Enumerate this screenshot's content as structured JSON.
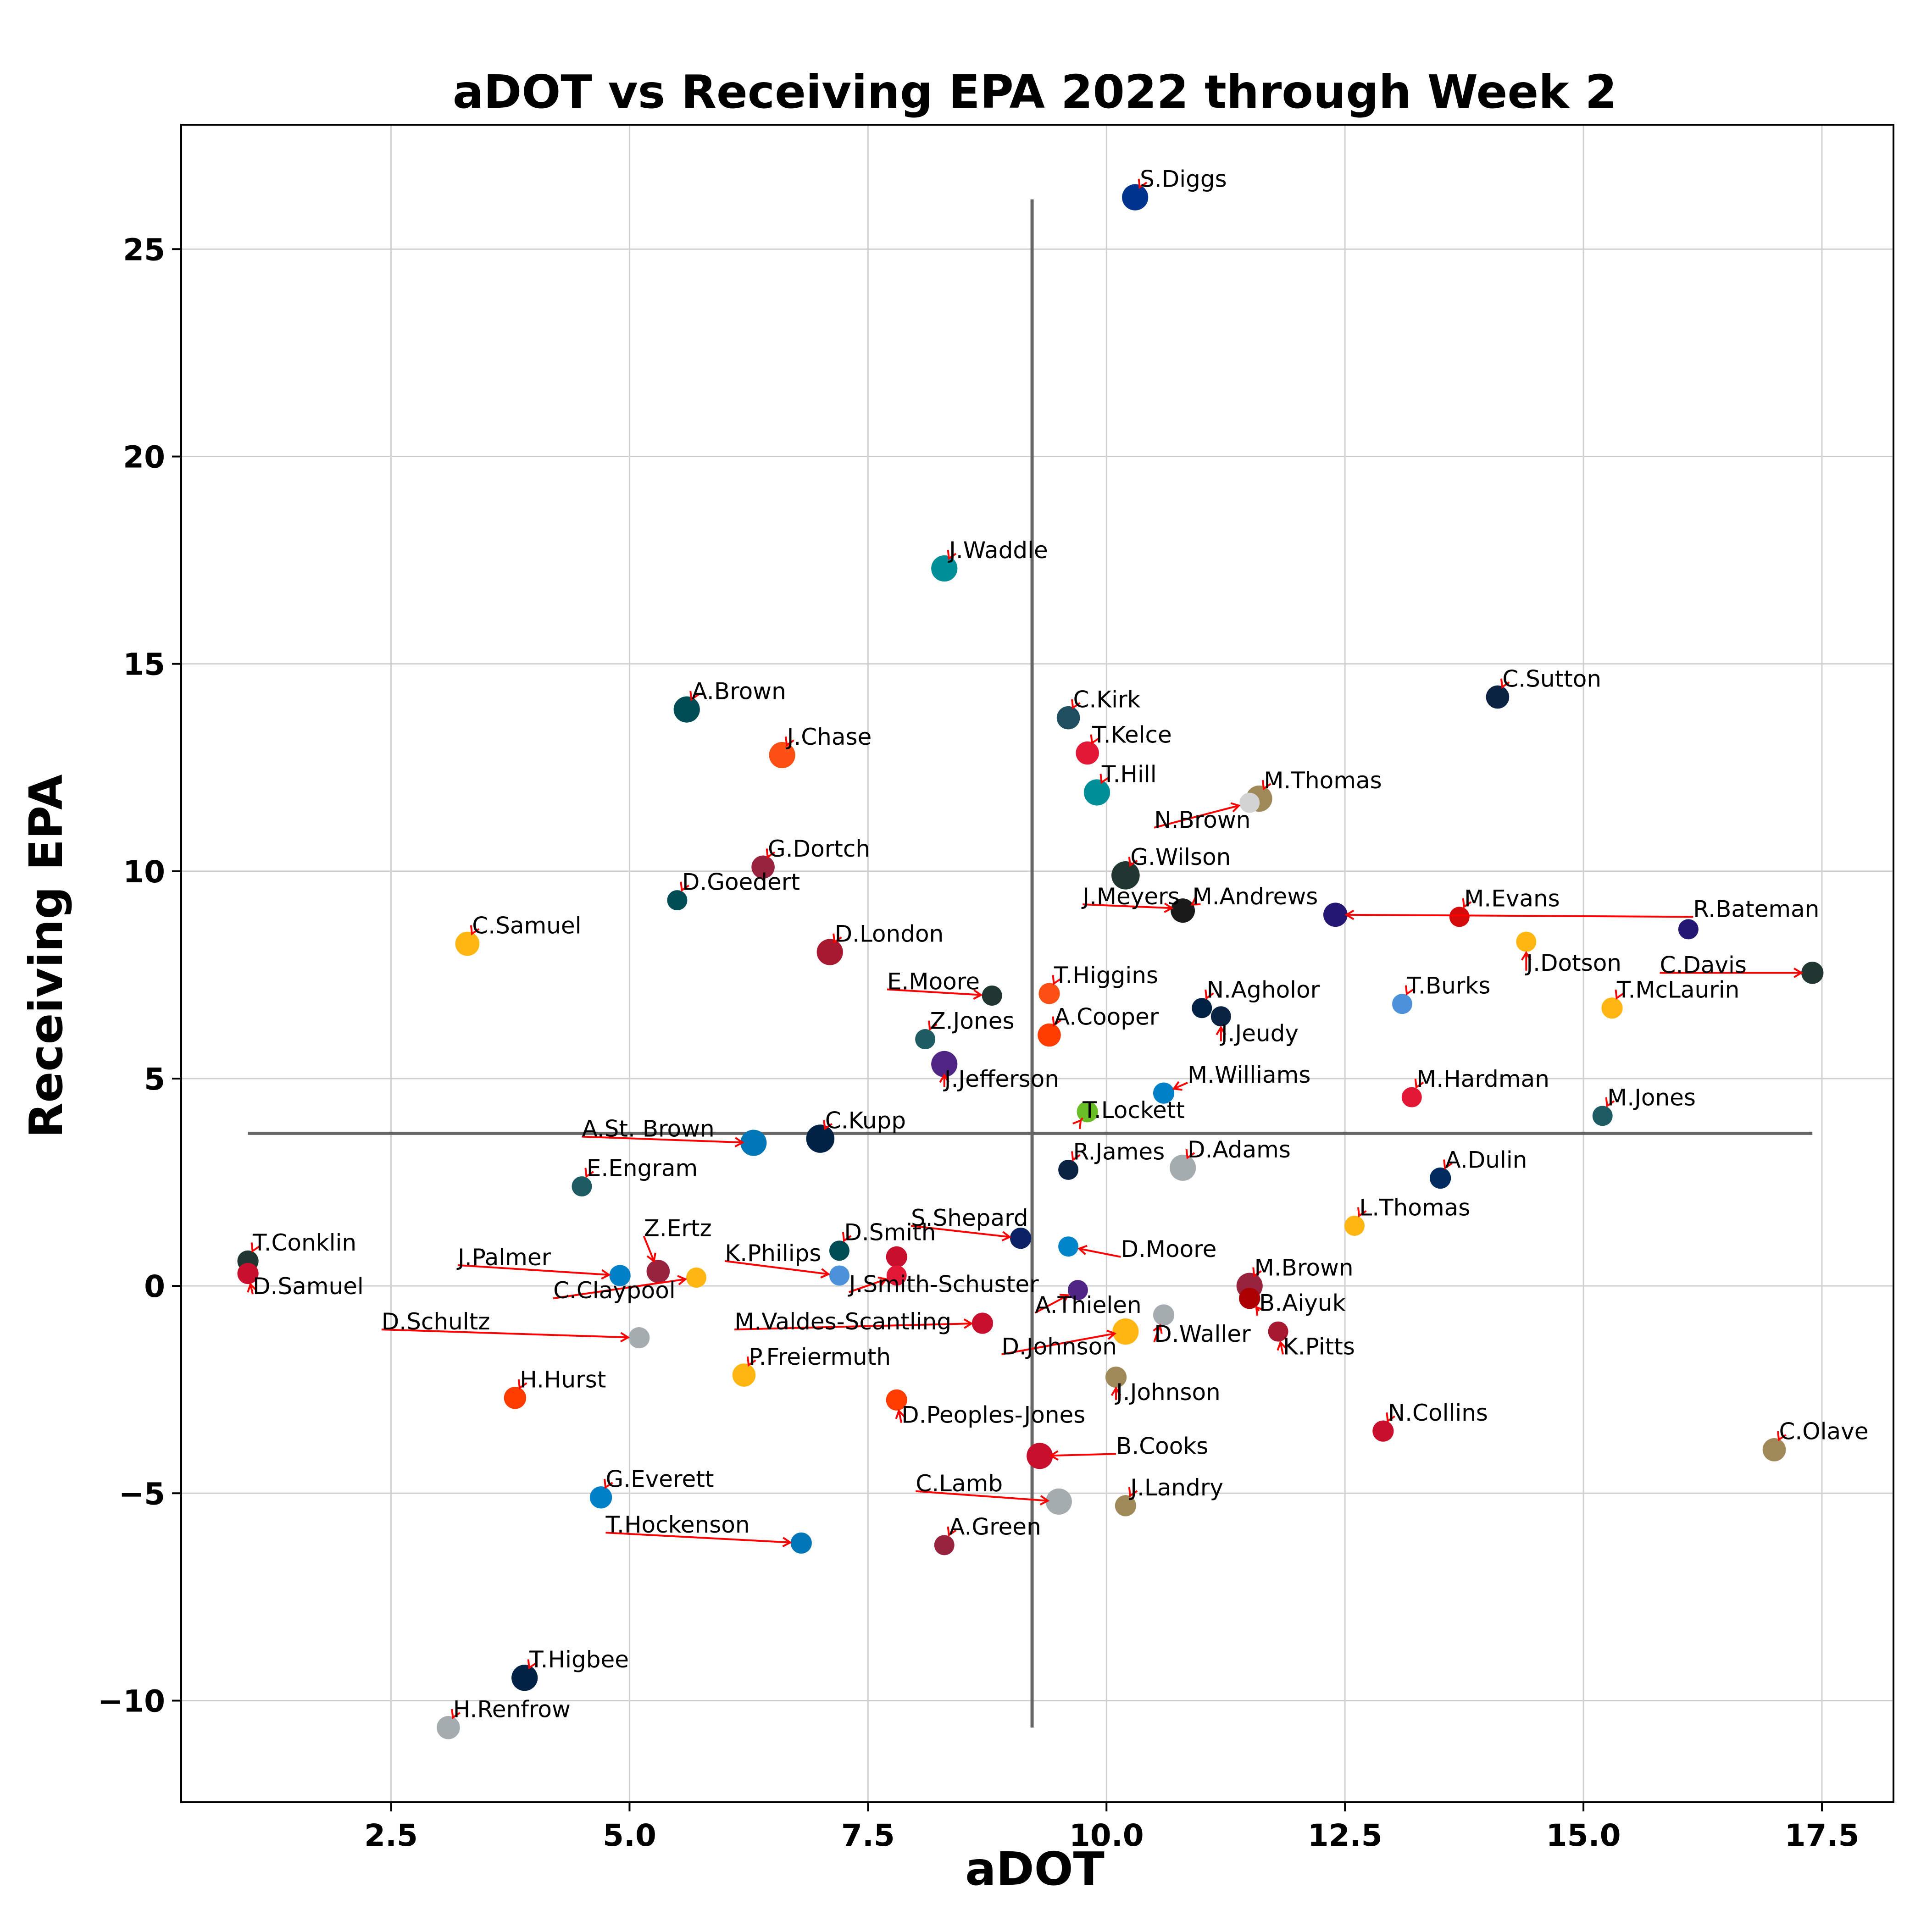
{
  "chart_data": {
    "type": "scatter",
    "title": "aDOT vs Receiving EPA 2022 through Week 2",
    "xlabel": "aDOT",
    "ylabel": "Receiving EPA",
    "xlim": [
      0.3,
      18.25
    ],
    "ylim": [
      -12.45,
      28.0
    ],
    "xticks": [
      2.5,
      5.0,
      7.5,
      10.0,
      12.5,
      15.0,
      17.5
    ],
    "xtick_labels": [
      "2.5",
      "5.0",
      "7.5",
      "10.0",
      "12.5",
      "15.0",
      "17.5"
    ],
    "yticks": [
      -10,
      -5,
      0,
      5,
      10,
      15,
      20,
      25
    ],
    "ytick_labels": [
      "−10",
      "−5",
      "0",
      "5",
      "10",
      "15",
      "20",
      "25"
    ],
    "grid": true,
    "reference_lines": {
      "vertical": {
        "x": 9.22,
        "y_from": -10.65,
        "y_to": 26.2
      },
      "horizontal": {
        "y": 3.68,
        "x_from": 1.0,
        "x_to": 17.4
      }
    },
    "points": [
      {
        "name": "S.Diggs",
        "x": 10.3,
        "y": 26.25,
        "color": "#00338D",
        "size": 1.3,
        "lx": 10.35,
        "ly": 26.5,
        "ldx": 0,
        "ldy": 0
      },
      {
        "name": "J.Waddle",
        "x": 8.3,
        "y": 17.3,
        "color": "#008E97",
        "size": 1.3,
        "lx": 8.35,
        "ly": 17.55,
        "ldx": 0,
        "ldy": 0
      },
      {
        "name": "C.Sutton",
        "x": 14.1,
        "y": 14.2,
        "color": "#0A2343",
        "size": 1.15,
        "lx": 14.15,
        "ly": 14.45,
        "ldx": 0,
        "ldy": 0
      },
      {
        "name": "A.Brown",
        "x": 5.6,
        "y": 13.9,
        "color": "#004C54",
        "size": 1.3,
        "lx": 5.65,
        "ly": 14.15,
        "ldx": 0,
        "ldy": 0
      },
      {
        "name": "C.Kirk",
        "x": 9.6,
        "y": 13.7,
        "color": "#1F4E5F",
        "size": 1.15,
        "lx": 9.65,
        "ly": 13.95,
        "ldx": 0,
        "ldy": 0
      },
      {
        "name": "J.Chase",
        "x": 6.6,
        "y": 12.8,
        "color": "#FB4F14",
        "size": 1.3,
        "lx": 6.65,
        "ly": 13.05,
        "ldx": 0,
        "ldy": 0
      },
      {
        "name": "T.Kelce",
        "x": 9.8,
        "y": 12.85,
        "color": "#E31837",
        "size": 1.15,
        "lx": 9.85,
        "ly": 13.1,
        "ldx": 0,
        "ldy": 0
      },
      {
        "name": "T.Hill",
        "x": 9.9,
        "y": 11.9,
        "color": "#008E97",
        "size": 1.3,
        "lx": 9.95,
        "ly": 12.15,
        "ldx": 0,
        "ldy": 0
      },
      {
        "name": "M.Thomas",
        "x": 11.6,
        "y": 11.75,
        "color": "#9F8958",
        "size": 1.3,
        "lx": 11.65,
        "ly": 12.0,
        "ldx": 0,
        "ldy": 0
      },
      {
        "name": "N.Brown",
        "x": 11.5,
        "y": 11.65,
        "color": "#D3D3D3",
        "size": 1.0,
        "lx": 10.5,
        "ly": 11.05,
        "ldx": 0,
        "ldy": 0
      },
      {
        "name": "G.Dortch",
        "x": 6.4,
        "y": 10.1,
        "color": "#97233F",
        "size": 1.15,
        "lx": 6.45,
        "ly": 10.35,
        "ldx": 0,
        "ldy": 0
      },
      {
        "name": "G.Wilson",
        "x": 10.2,
        "y": 9.9,
        "color": "#203731",
        "size": 1.4,
        "lx": 10.25,
        "ly": 10.15,
        "ldx": 0,
        "ldy": 0
      },
      {
        "name": "D.Goedert",
        "x": 5.5,
        "y": 9.3,
        "color": "#004C54",
        "size": 1.0,
        "lx": 5.55,
        "ly": 9.55,
        "ldx": 0,
        "ldy": 0
      },
      {
        "name": "J.Meyers",
        "x": 10.8,
        "y": 9.1,
        "color": "#002244",
        "size": 1.0,
        "lx": 9.75,
        "ly": 9.2,
        "ldx": 0,
        "ldy": 0
      },
      {
        "name": "M.Andrews",
        "x": 10.8,
        "y": 9.05,
        "color": "#1A1A1A",
        "size": 1.2,
        "lx": 10.9,
        "ly": 9.2,
        "ldx": 0,
        "ldy": 0
      },
      {
        "name": "R.Bateman",
        "x": 12.4,
        "y": 8.95,
        "color": "#241773",
        "size": 1.2,
        "lx": 16.15,
        "ly": 8.9,
        "ldx": 0,
        "ldy": 0
      },
      {
        "name": "M.Evans",
        "x": 13.7,
        "y": 8.9,
        "color": "#D50A0A",
        "size": 1.0,
        "lx": 13.75,
        "ly": 9.15,
        "ldx": 0,
        "ldy": 0
      },
      {
        "name": "R.Bateman_pt",
        "x": 16.1,
        "y": 8.6,
        "color": "#241773",
        "size": 1.0,
        "lx": null,
        "ly": null,
        "ldx": 0,
        "ldy": 0
      },
      {
        "name": "J.Dotson",
        "x": 14.4,
        "y": 8.3,
        "color": "#FFB612",
        "size": 1.0,
        "lx": 14.4,
        "ly": 7.6,
        "ldx": 0,
        "ldy": 0
      },
      {
        "name": "C.Samuel",
        "x": 3.3,
        "y": 8.25,
        "color": "#FFB612",
        "size": 1.2,
        "lx": 3.35,
        "ly": 8.5,
        "ldx": 0,
        "ldy": 0
      },
      {
        "name": "D.London",
        "x": 7.1,
        "y": 8.05,
        "color": "#A71930",
        "size": 1.3,
        "lx": 7.15,
        "ly": 8.3,
        "ldx": 0,
        "ldy": 0
      },
      {
        "name": "C.Davis",
        "x": 17.4,
        "y": 7.55,
        "color": "#203731",
        "size": 1.1,
        "lx": 15.8,
        "ly": 7.55,
        "ldx": 0,
        "ldy": 0
      },
      {
        "name": "T.Higgins",
        "x": 9.4,
        "y": 7.05,
        "color": "#FB4F14",
        "size": 1.05,
        "lx": 9.45,
        "ly": 7.3,
        "ldx": 0,
        "ldy": 0
      },
      {
        "name": "E.Moore",
        "x": 8.8,
        "y": 7.0,
        "color": "#203731",
        "size": 1.0,
        "lx": 7.7,
        "ly": 7.15,
        "ldx": 0,
        "ldy": 0
      },
      {
        "name": "N.Agholor",
        "x": 11.0,
        "y": 6.7,
        "color": "#002244",
        "size": 1.0,
        "lx": 11.05,
        "ly": 6.95,
        "ldx": 0,
        "ldy": 0
      },
      {
        "name": "T.Burks",
        "x": 13.1,
        "y": 6.8,
        "color": "#4B92DB",
        "size": 1.0,
        "lx": 13.15,
        "ly": 7.05,
        "ldx": 0,
        "ldy": 0
      },
      {
        "name": "T.McLaurin",
        "x": 15.3,
        "y": 6.7,
        "color": "#FFB612",
        "size": 1.05,
        "lx": 15.35,
        "ly": 6.95,
        "ldx": 0,
        "ldy": 0
      },
      {
        "name": "J.Jeudy",
        "x": 11.2,
        "y": 6.5,
        "color": "#0A2343",
        "size": 1.0,
        "lx": 11.2,
        "ly": 5.9,
        "ldx": 0,
        "ldy": 0
      },
      {
        "name": "A.Cooper",
        "x": 9.4,
        "y": 6.05,
        "color": "#FF3C00",
        "size": 1.15,
        "lx": 9.45,
        "ly": 6.3,
        "ldx": 0,
        "ldy": 0
      },
      {
        "name": "Z.Jones",
        "x": 8.1,
        "y": 5.95,
        "color": "#1D5C63",
        "size": 1.0,
        "lx": 8.15,
        "ly": 6.2,
        "ldx": 0,
        "ldy": 0
      },
      {
        "name": "J.Jefferson",
        "x": 8.3,
        "y": 5.35,
        "color": "#4F2683",
        "size": 1.3,
        "lx": 8.3,
        "ly": 4.8,
        "ldx": 0,
        "ldy": 0
      },
      {
        "name": "M.Williams",
        "x": 10.6,
        "y": 4.65,
        "color": "#0080C6",
        "size": 1.05,
        "lx": 10.85,
        "ly": 4.9,
        "ldx": 0,
        "ldy": 0
      },
      {
        "name": "M.Hardman",
        "x": 13.2,
        "y": 4.55,
        "color": "#E31837",
        "size": 1.0,
        "lx": 13.25,
        "ly": 4.8,
        "ldx": 0,
        "ldy": 0
      },
      {
        "name": "T.Lockett",
        "x": 9.8,
        "y": 4.2,
        "color": "#69BE28",
        "size": 1.05,
        "lx": 9.75,
        "ly": 4.05,
        "ldx": 0,
        "ldy": 0
      },
      {
        "name": "M.Jones",
        "x": 15.2,
        "y": 4.1,
        "color": "#1D5C63",
        "size": 1.0,
        "lx": 15.25,
        "ly": 4.35,
        "ldx": 0,
        "ldy": 0
      },
      {
        "name": "C.Kupp",
        "x": 7.0,
        "y": 3.55,
        "color": "#002244",
        "size": 1.4,
        "lx": 7.05,
        "ly": 3.8,
        "ldx": 0,
        "ldy": 0
      },
      {
        "name": "A.St. Brown",
        "x": 6.3,
        "y": 3.45,
        "color": "#0076B6",
        "size": 1.3,
        "lx": 4.5,
        "ly": 3.6,
        "ldx": 0,
        "ldy": 0
      },
      {
        "name": "D.Adams",
        "x": 10.8,
        "y": 2.85,
        "color": "#A5ACAF",
        "size": 1.3,
        "lx": 10.85,
        "ly": 3.1,
        "ldx": 0,
        "ldy": 0
      },
      {
        "name": "R.James",
        "x": 9.6,
        "y": 2.8,
        "color": "#0A2343",
        "size": 1.0,
        "lx": 9.65,
        "ly": 3.05,
        "ldx": 0,
        "ldy": 0
      },
      {
        "name": "A.Dulin",
        "x": 13.5,
        "y": 2.6,
        "color": "#002C5F",
        "size": 1.05,
        "lx": 13.55,
        "ly": 2.85,
        "ldx": 0,
        "ldy": 0
      },
      {
        "name": "E.Engram",
        "x": 4.5,
        "y": 2.4,
        "color": "#1D5C63",
        "size": 1.0,
        "lx": 4.55,
        "ly": 2.65,
        "ldx": 0,
        "ldy": 0
      },
      {
        "name": "L.Thomas",
        "x": 12.6,
        "y": 1.45,
        "color": "#FFB612",
        "size": 1.0,
        "lx": 12.65,
        "ly": 1.7,
        "ldx": 0,
        "ldy": 0
      },
      {
        "name": "S.Shepard",
        "x": 9.1,
        "y": 1.15,
        "color": "#0B2265",
        "size": 1.05,
        "lx": 7.95,
        "ly": 1.45,
        "ldx": 0,
        "ldy": 0
      },
      {
        "name": "D.Moore",
        "x": 9.6,
        "y": 0.95,
        "color": "#0085CA",
        "size": 1.0,
        "lx": 10.15,
        "ly": 0.7,
        "ldx": 0,
        "ldy": 0
      },
      {
        "name": "D.Smith",
        "x": 7.2,
        "y": 0.85,
        "color": "#004C54",
        "size": 1.0,
        "lx": 7.25,
        "ly": 1.1,
        "ldx": 0,
        "ldy": 0
      },
      {
        "name": "K.Philips",
        "x": 7.2,
        "y": 0.25,
        "color": "#4B92DB",
        "size": 1.0,
        "lx": 6.0,
        "ly": 0.6,
        "ldx": 0,
        "ldy": 0
      },
      {
        "name": "D.Smith_pt",
        "x": 7.8,
        "y": 0.7,
        "color": "#C8102E",
        "size": 1.05,
        "lx": null,
        "ly": null,
        "ldx": 0,
        "ldy": 0
      },
      {
        "name": "T.Conklin",
        "x": 1.0,
        "y": 0.6,
        "color": "#203731",
        "size": 1.05,
        "lx": 1.05,
        "ly": 0.85,
        "ldx": 0,
        "ldy": 0
      },
      {
        "name": "Z.Ertz",
        "x": 5.3,
        "y": 0.35,
        "color": "#97233F",
        "size": 1.15,
        "lx": 5.15,
        "ly": 1.2,
        "ldx": 0,
        "ldy": 0
      },
      {
        "name": "D.Samuel",
        "x": 1.0,
        "y": 0.3,
        "color": "#C8102E",
        "size": 1.05,
        "lx": 1.05,
        "ly": -0.2,
        "ldx": 0,
        "ldy": 0
      },
      {
        "name": "J.Palmer",
        "x": 4.9,
        "y": 0.25,
        "color": "#0080C6",
        "size": 1.05,
        "lx": 3.2,
        "ly": 0.5,
        "ldx": 0,
        "ldy": 0
      },
      {
        "name": "C.Claypool",
        "x": 5.7,
        "y": 0.2,
        "color": "#FFB612",
        "size": 1.0,
        "lx": 4.2,
        "ly": -0.3,
        "ldx": 0,
        "ldy": 0
      },
      {
        "name": "J.Smith-Schuster",
        "x": 7.8,
        "y": 0.25,
        "color": "#E31837",
        "size": 1.0,
        "lx": 7.3,
        "ly": -0.15,
        "ldx": 0,
        "ldy": 0
      },
      {
        "name": "M.Brown",
        "x": 11.5,
        "y": 0.0,
        "color": "#97233F",
        "size": 1.3,
        "lx": 11.55,
        "ly": 0.25,
        "ldx": 0,
        "ldy": 0
      },
      {
        "name": "A.Thielen",
        "x": 9.7,
        "y": -0.1,
        "color": "#4F2683",
        "size": 1.0,
        "lx": 9.25,
        "ly": -0.65,
        "ldx": 0,
        "ldy": 0
      },
      {
        "name": "B.Aiyuk",
        "x": 11.5,
        "y": -0.3,
        "color": "#AA0000",
        "size": 1.05,
        "lx": 11.6,
        "ly": -0.6,
        "ldx": 0,
        "ldy": 0
      },
      {
        "name": "D.Waller",
        "x": 10.6,
        "y": -0.7,
        "color": "#A5ACAF",
        "size": 1.05,
        "lx": 10.5,
        "ly": -1.35,
        "ldx": 0,
        "ldy": 0
      },
      {
        "name": "M.Valdes-Scantling",
        "x": 8.7,
        "y": -0.9,
        "color": "#C8102E",
        "size": 1.05,
        "lx": 6.1,
        "ly": -1.05,
        "ldx": 0,
        "ldy": 0
      },
      {
        "name": "D.Johnson",
        "x": 10.2,
        "y": -1.1,
        "color": "#FFB612",
        "size": 1.3,
        "lx": 8.9,
        "ly": -1.65,
        "ldx": 0,
        "ldy": 0
      },
      {
        "name": "K.Pitts",
        "x": 11.8,
        "y": -1.1,
        "color": "#A71930",
        "size": 1.0,
        "lx": 11.85,
        "ly": -1.65,
        "ldx": 0,
        "ldy": 0
      },
      {
        "name": "D.Schultz",
        "x": 5.1,
        "y": -1.25,
        "color": "#A5ACAF",
        "size": 1.05,
        "lx": 2.4,
        "ly": -1.05,
        "ldx": 0,
        "ldy": 0
      },
      {
        "name": "P.Freiermuth",
        "x": 6.2,
        "y": -2.15,
        "color": "#FFB612",
        "size": 1.15,
        "lx": 6.25,
        "ly": -1.9,
        "ldx": 0,
        "ldy": 0
      },
      {
        "name": "J.Johnson",
        "x": 10.1,
        "y": -2.2,
        "color": "#9F8958",
        "size": 1.05,
        "lx": 10.1,
        "ly": -2.75,
        "ldx": 0,
        "ldy": 0
      },
      {
        "name": "H.Hurst",
        "x": 3.8,
        "y": -2.7,
        "color": "#FF3C00",
        "size": 1.1,
        "lx": 3.85,
        "ly": -2.45,
        "ldx": 0,
        "ldy": 0
      },
      {
        "name": "D.Peoples-Jones",
        "x": 7.8,
        "y": -2.75,
        "color": "#FF3C00",
        "size": 1.05,
        "lx": 7.85,
        "ly": -3.3,
        "ldx": 0,
        "ldy": 0
      },
      {
        "name": "N.Collins",
        "x": 12.9,
        "y": -3.5,
        "color": "#C8102E",
        "size": 1.05,
        "lx": 12.95,
        "ly": -3.25,
        "ldx": 0,
        "ldy": 0
      },
      {
        "name": "C.Olave",
        "x": 17.0,
        "y": -3.95,
        "color": "#9F8958",
        "size": 1.15,
        "lx": 17.05,
        "ly": -3.7,
        "ldx": 0,
        "ldy": 0
      },
      {
        "name": "B.Cooks",
        "x": 9.3,
        "y": -4.1,
        "color": "#C8102E",
        "size": 1.3,
        "lx": 10.1,
        "ly": -4.05,
        "ldx": 0,
        "ldy": 0
      },
      {
        "name": "C.Lamb",
        "x": 9.5,
        "y": -5.2,
        "color": "#A5ACAF",
        "size": 1.3,
        "lx": 8.0,
        "ly": -4.95,
        "ldx": 0,
        "ldy": 0
      },
      {
        "name": "G.Everett",
        "x": 4.7,
        "y": -5.1,
        "color": "#0080C6",
        "size": 1.1,
        "lx": 4.75,
        "ly": -4.85,
        "ldx": 0,
        "ldy": 0
      },
      {
        "name": "J.Landry",
        "x": 10.2,
        "y": -5.3,
        "color": "#9F8958",
        "size": 1.05,
        "lx": 10.25,
        "ly": -5.05,
        "ldx": 0,
        "ldy": 0
      },
      {
        "name": "T.Hockenson",
        "x": 6.8,
        "y": -6.2,
        "color": "#0076B6",
        "size": 1.05,
        "lx": 4.75,
        "ly": -5.95,
        "ldx": 0,
        "ldy": 0
      },
      {
        "name": "A.Green",
        "x": 8.3,
        "y": -6.25,
        "color": "#97233F",
        "size": 1.0,
        "lx": 8.35,
        "ly": -6.0,
        "ldx": 0,
        "ldy": 0
      },
      {
        "name": "T.Higbee",
        "x": 3.9,
        "y": -9.45,
        "color": "#002244",
        "size": 1.3,
        "lx": 3.95,
        "ly": -9.2,
        "ldx": 0,
        "ldy": 0
      },
      {
        "name": "H.Renfrow",
        "x": 3.1,
        "y": -10.65,
        "color": "#A5ACAF",
        "size": 1.15,
        "lx": 3.15,
        "ly": -10.4,
        "ldx": 0,
        "ldy": 0
      }
    ]
  }
}
